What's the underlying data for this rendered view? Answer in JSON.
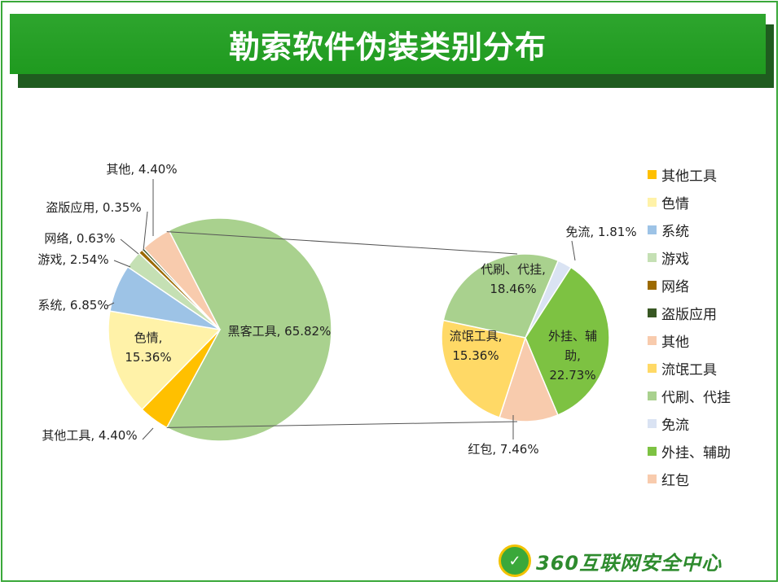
{
  "title": "勒索软件伪装类别分布",
  "logo_text": "360互联网安全中心",
  "logo_icon": "globe-shield-icon",
  "chart_data": [
    {
      "type": "pie",
      "slices": [
        {
          "label": "黑客工具",
          "value": 65.82,
          "display": "黑客工具, 65.82%",
          "color": "#a9d18e"
        },
        {
          "label": "其他工具",
          "value": 4.4,
          "display": "其他工具, 4.40%",
          "color": "#ffc000"
        },
        {
          "label": "色情",
          "value": 15.36,
          "display": "色情,\n15.36%",
          "color": "#fff2a8"
        },
        {
          "label": "系统",
          "value": 6.85,
          "display": "系统, 6.85%",
          "color": "#9dc3e6"
        },
        {
          "label": "游戏",
          "value": 2.54,
          "display": "游戏, 2.54%",
          "color": "#c5e0b4"
        },
        {
          "label": "网络",
          "value": 0.63,
          "display": "网络, 0.63%",
          "color": "#9c6a00"
        },
        {
          "label": "盗版应用",
          "value": 0.35,
          "display": "盗版应用, 0.35%",
          "color": "#385723"
        },
        {
          "label": "其他",
          "value": 4.4,
          "display": "其他, 4.40%",
          "color": "#f8cbad"
        }
      ]
    },
    {
      "type": "pie",
      "of_slice": "黑客工具",
      "slices": [
        {
          "label": "免流",
          "value": 1.81,
          "display": "免流, 1.81%",
          "color": "#dae3f3"
        },
        {
          "label": "外挂、辅助",
          "value": 22.73,
          "display": "外挂、辅\n助,\n22.73%",
          "color": "#7dc242"
        },
        {
          "label": "红包",
          "value": 7.46,
          "display": "红包, 7.46%",
          "color": "#f8cbad"
        },
        {
          "label": "流氓工具",
          "value": 15.36,
          "display": "流氓工具,\n15.36%",
          "color": "#ffd966"
        },
        {
          "label": "代刷、代挂",
          "value": 18.46,
          "display": "代刷、代挂,\n18.46%",
          "color": "#a9d18e"
        }
      ]
    }
  ],
  "legend": [
    {
      "label": "其他工具",
      "color": "#ffc000"
    },
    {
      "label": "色情",
      "color": "#fff2a8"
    },
    {
      "label": "系统",
      "color": "#9dc3e6"
    },
    {
      "label": "游戏",
      "color": "#c5e0b4"
    },
    {
      "label": "网络",
      "color": "#9c6a00"
    },
    {
      "label": "盗版应用",
      "color": "#385723"
    },
    {
      "label": "其他",
      "color": "#f8cbad"
    },
    {
      "label": "流氓工具",
      "color": "#ffd966"
    },
    {
      "label": "代刷、代挂",
      "color": "#a9d18e"
    },
    {
      "label": "免流",
      "color": "#dae3f3"
    },
    {
      "label": "外挂、辅助",
      "color": "#7dc242"
    },
    {
      "label": "红包",
      "color": "#f8cbad"
    }
  ]
}
